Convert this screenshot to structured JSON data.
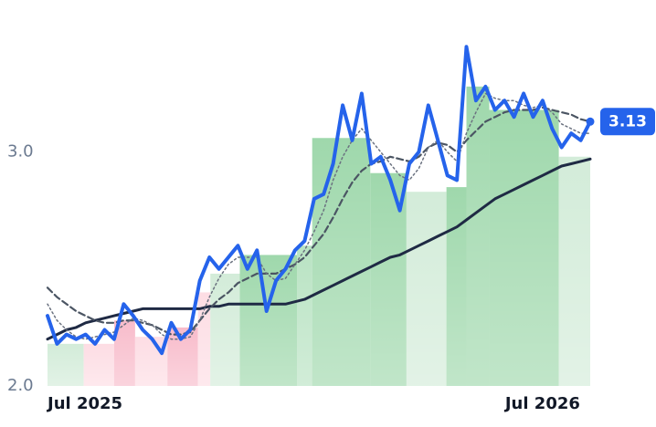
{
  "chart_data": {
    "type": "line",
    "x": [
      0,
      1,
      2,
      3,
      4,
      5,
      6,
      7,
      8,
      9,
      10,
      11,
      12,
      13,
      14,
      15,
      16,
      17,
      18,
      19,
      20,
      21,
      22,
      23,
      24,
      25,
      26,
      27,
      28,
      29,
      30,
      31,
      32,
      33,
      34,
      35,
      36,
      37,
      38,
      39,
      40,
      41,
      42,
      43,
      44,
      45,
      46,
      47,
      48,
      49,
      50,
      51,
      52,
      53,
      54,
      55,
      56,
      57
    ],
    "xlim": [
      0,
      57
    ],
    "xticks": [
      {
        "value": 0,
        "label": "Jul 2025"
      },
      {
        "value": 52,
        "label": "Jul 2026"
      }
    ],
    "ylim": [
      2.0,
      3.65
    ],
    "yticks": [
      {
        "value": 2,
        "label": "2.0"
      },
      {
        "value": 3,
        "label": "3.0"
      }
    ],
    "bands": [
      {
        "start": 0,
        "end": 3.8,
        "value": 2.18,
        "color": "#d3ecd9"
      },
      {
        "start": 3.8,
        "end": 7.0,
        "value": 2.18,
        "color": "#fddde4"
      },
      {
        "start": 7.0,
        "end": 9.2,
        "value": 2.28,
        "color": "#f8bccb"
      },
      {
        "start": 9.2,
        "end": 12.6,
        "value": 2.21,
        "color": "#fddde4"
      },
      {
        "start": 12.6,
        "end": 15.8,
        "value": 2.25,
        "color": "#f8bccb"
      },
      {
        "start": 15.8,
        "end": 17.1,
        "value": 2.4,
        "color": "#fddde4"
      },
      {
        "start": 17.1,
        "end": 20.2,
        "value": 2.48,
        "color": "#d3ecd9"
      },
      {
        "start": 20.2,
        "end": 26.2,
        "value": 2.56,
        "color": "#9fd8ac"
      },
      {
        "start": 26.2,
        "end": 27.8,
        "value": 2.6,
        "color": "#b9e3c3"
      },
      {
        "start": 27.8,
        "end": 33.9,
        "value": 3.06,
        "color": "#9fd8ac"
      },
      {
        "start": 33.9,
        "end": 37.7,
        "value": 2.91,
        "color": "#9fd8ac"
      },
      {
        "start": 37.7,
        "end": 41.9,
        "value": 2.83,
        "color": "#d3ecd9"
      },
      {
        "start": 41.9,
        "end": 44.0,
        "value": 2.85,
        "color": "#9fd8ac"
      },
      {
        "start": 44.0,
        "end": 46.4,
        "value": 3.28,
        "color": "#9fd8ac"
      },
      {
        "start": 46.4,
        "end": 53.7,
        "value": 3.18,
        "color": "#9fd8ac"
      },
      {
        "start": 53.7,
        "end": 57,
        "value": 2.98,
        "color": "#d3ecd9"
      }
    ],
    "series": [
      {
        "color": "#1f2a44",
        "width": 3,
        "dash": "none",
        "values": [
          2.2,
          2.22,
          2.24,
          2.25,
          2.27,
          2.28,
          2.29,
          2.3,
          2.31,
          2.32,
          2.33,
          2.33,
          2.33,
          2.33,
          2.33,
          2.33,
          2.33,
          2.34,
          2.34,
          2.35,
          2.35,
          2.35,
          2.35,
          2.35,
          2.35,
          2.35,
          2.36,
          2.37,
          2.39,
          2.41,
          2.43,
          2.45,
          2.47,
          2.49,
          2.51,
          2.53,
          2.55,
          2.56,
          2.58,
          2.6,
          2.62,
          2.64,
          2.66,
          2.68,
          2.71,
          2.74,
          2.77,
          2.8,
          2.82,
          2.84,
          2.86,
          2.88,
          2.9,
          2.92,
          2.94,
          2.95,
          2.96,
          2.97
        ]
      },
      {
        "color": "#4b5563",
        "width": 2.2,
        "dash": "7 4",
        "values": [
          2.42,
          2.38,
          2.35,
          2.32,
          2.3,
          2.28,
          2.27,
          2.27,
          2.28,
          2.28,
          2.27,
          2.26,
          2.24,
          2.22,
          2.22,
          2.23,
          2.28,
          2.33,
          2.37,
          2.4,
          2.44,
          2.46,
          2.48,
          2.48,
          2.48,
          2.5,
          2.52,
          2.55,
          2.6,
          2.65,
          2.72,
          2.8,
          2.87,
          2.92,
          2.95,
          2.96,
          2.98,
          2.97,
          2.96,
          2.98,
          3.02,
          3.04,
          3.03,
          3.0,
          3.05,
          3.09,
          3.13,
          3.15,
          3.17,
          3.18,
          3.18,
          3.18,
          3.19,
          3.18,
          3.17,
          3.16,
          3.14,
          3.13
        ]
      },
      {
        "color": "#6b7280",
        "width": 1.5,
        "dash": "2 3",
        "values": [
          2.35,
          2.28,
          2.24,
          2.21,
          2.2,
          2.21,
          2.22,
          2.23,
          2.26,
          2.29,
          2.28,
          2.26,
          2.22,
          2.2,
          2.2,
          2.21,
          2.28,
          2.38,
          2.46,
          2.52,
          2.55,
          2.55,
          2.55,
          2.48,
          2.45,
          2.46,
          2.52,
          2.58,
          2.66,
          2.75,
          2.88,
          2.98,
          3.05,
          3.1,
          3.05,
          3.0,
          2.95,
          2.9,
          2.88,
          2.93,
          3.02,
          3.05,
          3.0,
          2.96,
          3.08,
          3.17,
          3.25,
          3.23,
          3.22,
          3.22,
          3.2,
          3.19,
          3.2,
          3.17,
          3.12,
          3.1,
          3.08,
          3.08
        ]
      },
      {
        "color": "#2563eb",
        "width": 4,
        "dash": "none",
        "values": [
          2.3,
          2.18,
          2.22,
          2.2,
          2.22,
          2.18,
          2.24,
          2.2,
          2.35,
          2.3,
          2.24,
          2.2,
          2.14,
          2.27,
          2.2,
          2.24,
          2.45,
          2.55,
          2.5,
          2.55,
          2.6,
          2.5,
          2.58,
          2.32,
          2.45,
          2.5,
          2.58,
          2.62,
          2.8,
          2.82,
          2.95,
          3.2,
          3.05,
          3.25,
          2.95,
          2.98,
          2.88,
          2.75,
          2.95,
          3.0,
          3.2,
          3.05,
          2.9,
          2.88,
          3.45,
          3.22,
          3.28,
          3.18,
          3.22,
          3.15,
          3.25,
          3.15,
          3.22,
          3.1,
          3.02,
          3.08,
          3.05,
          3.13
        ]
      }
    ]
  }
}
